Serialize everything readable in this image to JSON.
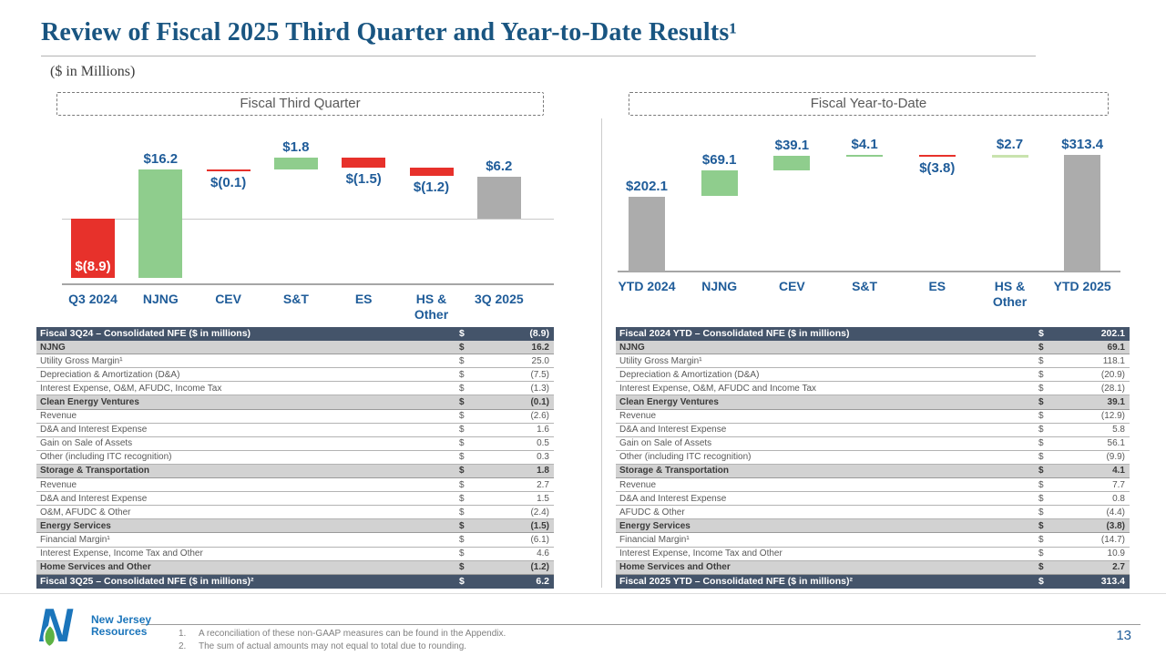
{
  "slide": {
    "title": "Review of Fiscal 2025 Third Quarter and Year-to-Date Results¹",
    "subtitle": "($ in Millions)",
    "page_number": "13",
    "logo": {
      "line1": "New Jersey",
      "line2": "Resources"
    },
    "footnotes": [
      {
        "num": "1.",
        "text": "A reconciliation of these non-GAAP measures can be found in the Appendix."
      },
      {
        "num": "2.",
        "text": "The sum of actual amounts may not equal to total due to rounding."
      }
    ]
  },
  "colors": {
    "title_blue": "#195581",
    "chart_label_blue": "#1F5C99",
    "red": "#E7312B",
    "green": "#8FCD8D",
    "pale_green": "#C9E3AE",
    "gray": "#ACACAC",
    "table_header_bg": "#44546A",
    "table_section_bg": "#D2D2D2",
    "logo_blue": "#1B75BB",
    "logo_green": "#5DB244"
  },
  "chart_data": [
    {
      "type": "bar",
      "subtype": "waterfall",
      "panel_title": "Fiscal Third Quarter",
      "categories": [
        "Q3 2024",
        "NJNG",
        "CEV",
        "S&T",
        "ES",
        "HS &\nOther",
        "3Q 2025"
      ],
      "units": "$ in Millions",
      "ylim": [
        -9.8,
        13.5
      ],
      "grid": false,
      "bars": [
        {
          "category": "Q3 2024",
          "label": "$(8.9)",
          "value": -8.9,
          "start": 0,
          "end": -8.9,
          "color": "red",
          "label_pos": "inside-bottom"
        },
        {
          "category": "NJNG",
          "label": "$16.2",
          "value": 16.2,
          "start": -8.9,
          "end": 7.3,
          "color": "green",
          "label_pos": "above"
        },
        {
          "category": "CEV",
          "label": "$(0.1)",
          "value": -0.1,
          "start": 7.3,
          "end": 7.2,
          "color": "red",
          "label_pos": "below"
        },
        {
          "category": "S&T",
          "label": "$1.8",
          "value": 1.8,
          "start": 7.2,
          "end": 9.0,
          "color": "green",
          "label_pos": "above"
        },
        {
          "category": "ES",
          "label": "$(1.5)",
          "value": -1.5,
          "start": 9.0,
          "end": 7.5,
          "color": "red",
          "label_pos": "below"
        },
        {
          "category": "HS &\nOther",
          "label": "$(1.2)",
          "value": -1.2,
          "start": 7.5,
          "end": 6.3,
          "color": "red",
          "label_pos": "below"
        },
        {
          "category": "3Q 2025",
          "label": "$6.2",
          "value": 6.2,
          "start": 0,
          "end": 6.2,
          "color": "gray",
          "label_pos": "above"
        }
      ]
    },
    {
      "type": "bar",
      "subtype": "waterfall",
      "panel_title": "Fiscal Year-to-Date",
      "categories": [
        "YTD 2024",
        "NJNG",
        "CEV",
        "S&T",
        "ES",
        "HS &\nOther",
        "YTD 2025"
      ],
      "units": "$ in Millions",
      "ylim": [
        0,
        387
      ],
      "grid": false,
      "bars": [
        {
          "category": "YTD 2024",
          "label": "$202.1",
          "value": 202.1,
          "start": 0,
          "end": 202.1,
          "color": "gray",
          "label_pos": "above"
        },
        {
          "category": "NJNG",
          "label": "$69.1",
          "value": 69.1,
          "start": 202.1,
          "end": 271.2,
          "color": "green",
          "label_pos": "above"
        },
        {
          "category": "CEV",
          "label": "$39.1",
          "value": 39.1,
          "start": 271.2,
          "end": 310.3,
          "color": "green",
          "label_pos": "above"
        },
        {
          "category": "S&T",
          "label": "$4.1",
          "value": 4.1,
          "start": 310.3,
          "end": 314.4,
          "color": "green",
          "label_pos": "above"
        },
        {
          "category": "ES",
          "label": "$(3.8)",
          "value": -3.8,
          "start": 314.4,
          "end": 310.6,
          "color": "red",
          "label_pos": "below"
        },
        {
          "category": "HS &\nOther",
          "label": "$2.7",
          "value": 2.7,
          "start": 310.6,
          "end": 313.3,
          "color": "pale_green",
          "label_pos": "above"
        },
        {
          "category": "YTD 2025",
          "label": "$313.4",
          "value": 313.4,
          "start": 0,
          "end": 313.4,
          "color": "gray",
          "label_pos": "above"
        }
      ]
    }
  ],
  "tables": [
    {
      "name": "fiscal-third-quarter-reconciliation",
      "rows": [
        {
          "type": "header",
          "label": "Fiscal 3Q24 – Consolidated NFE ($ in millions)",
          "dollar": "$",
          "value": "(8.9)"
        },
        {
          "type": "section",
          "label": "NJNG",
          "dollar": "$",
          "value": "16.2"
        },
        {
          "type": "item",
          "label": "Utility Gross Margin¹",
          "dollar": "$",
          "value": "25.0"
        },
        {
          "type": "item",
          "label": "Depreciation & Amortization (D&A)",
          "dollar": "$",
          "value": "(7.5)"
        },
        {
          "type": "item",
          "label": "Interest Expense, O&M, AFUDC, Income Tax",
          "dollar": "$",
          "value": "(1.3)"
        },
        {
          "type": "section",
          "label": "Clean Energy Ventures",
          "dollar": "$",
          "value": "(0.1)"
        },
        {
          "type": "item",
          "label": "Revenue",
          "dollar": "$",
          "value": "(2.6)"
        },
        {
          "type": "item",
          "label": "D&A and Interest Expense",
          "dollar": "$",
          "value": "1.6"
        },
        {
          "type": "item",
          "label": "Gain on Sale of Assets",
          "dollar": "$",
          "value": "0.5"
        },
        {
          "type": "item",
          "label": "Other (including ITC recognition)",
          "dollar": "$",
          "value": "0.3"
        },
        {
          "type": "section",
          "label": "Storage & Transportation",
          "dollar": "$",
          "value": "1.8"
        },
        {
          "type": "item",
          "label": "Revenue",
          "dollar": "$",
          "value": "2.7"
        },
        {
          "type": "item",
          "label": "D&A and Interest Expense",
          "dollar": "$",
          "value": "1.5"
        },
        {
          "type": "item",
          "label": "O&M, AFUDC & Other",
          "dollar": "$",
          "value": "(2.4)"
        },
        {
          "type": "section",
          "label": "Energy Services",
          "dollar": "$",
          "value": "(1.5)"
        },
        {
          "type": "item",
          "label": "Financial Margin¹",
          "dollar": "$",
          "value": "(6.1)"
        },
        {
          "type": "item",
          "label": "Interest Expense, Income Tax and Other",
          "dollar": "$",
          "value": "4.6"
        },
        {
          "type": "section",
          "label": "Home Services and Other",
          "dollar": "$",
          "value": "(1.2)"
        },
        {
          "type": "footer",
          "label": "Fiscal 3Q25 – Consolidated NFE ($ in millions)²",
          "dollar": "$",
          "value": "6.2"
        }
      ]
    },
    {
      "name": "fiscal-year-to-date-reconciliation",
      "rows": [
        {
          "type": "header",
          "label": "Fiscal 2024 YTD – Consolidated NFE ($ in millions)",
          "dollar": "$",
          "value": "202.1"
        },
        {
          "type": "section",
          "label": "NJNG",
          "dollar": "$",
          "value": "69.1"
        },
        {
          "type": "item",
          "label": "Utility Gross Margin¹",
          "dollar": "$",
          "value": "118.1"
        },
        {
          "type": "item",
          "label": "Depreciation & Amortization (D&A)",
          "dollar": "$",
          "value": "(20.9)"
        },
        {
          "type": "item",
          "label": "Interest Expense, O&M, AFUDC and Income Tax",
          "dollar": "$",
          "value": "(28.1)"
        },
        {
          "type": "section",
          "label": "Clean Energy Ventures",
          "dollar": "$",
          "value": "39.1"
        },
        {
          "type": "item",
          "label": "Revenue",
          "dollar": "$",
          "value": "(12.9)"
        },
        {
          "type": "item",
          "label": "D&A and Interest Expense",
          "dollar": "$",
          "value": "5.8"
        },
        {
          "type": "item",
          "label": "Gain on Sale of Assets",
          "dollar": "$",
          "value": "56.1"
        },
        {
          "type": "item",
          "label": "Other (including ITC recognition)",
          "dollar": "$",
          "value": "(9.9)"
        },
        {
          "type": "section",
          "label": "Storage & Transportation",
          "dollar": "$",
          "value": "4.1"
        },
        {
          "type": "item",
          "label": "Revenue",
          "dollar": "$",
          "value": "7.7"
        },
        {
          "type": "item",
          "label": "D&A and Interest Expense",
          "dollar": "$",
          "value": "0.8"
        },
        {
          "type": "item",
          "label": "AFUDC & Other",
          "dollar": "$",
          "value": "(4.4)"
        },
        {
          "type": "section",
          "label": "Energy Services",
          "dollar": "$",
          "value": "(3.8)"
        },
        {
          "type": "item",
          "label": "Financial Margin¹",
          "dollar": "$",
          "value": "(14.7)"
        },
        {
          "type": "item",
          "label": "Interest Expense, Income Tax and Other",
          "dollar": "$",
          "value": "10.9"
        },
        {
          "type": "section",
          "label": "Home Services and Other",
          "dollar": "$",
          "value": "2.7"
        },
        {
          "type": "footer",
          "label": "Fiscal 2025 YTD – Consolidated NFE ($ in millions)²",
          "dollar": "$",
          "value": "313.4"
        }
      ]
    }
  ]
}
